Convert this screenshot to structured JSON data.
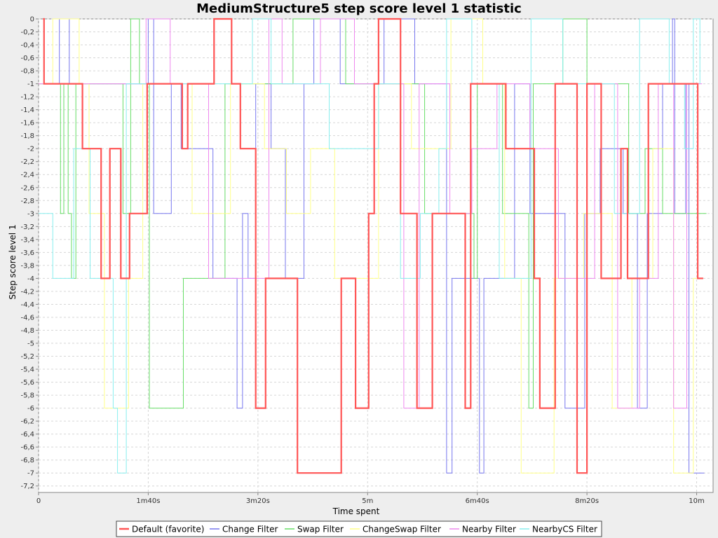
{
  "chart_data": {
    "type": "line",
    "title": "MediumStructure5 step score level 1 statistic",
    "xlabel": "Time spent",
    "ylabel": "Step score level 1",
    "xlim": [
      0,
      615
    ],
    "ylim": [
      -7.3,
      0
    ],
    "x_ticks": [
      {
        "value": 0,
        "label": "0"
      },
      {
        "value": 100,
        "label": "1m40s"
      },
      {
        "value": 200,
        "label": "3m20s"
      },
      {
        "value": 300,
        "label": "5m"
      },
      {
        "value": 400,
        "label": "6m40s"
      },
      {
        "value": 500,
        "label": "8m20s"
      },
      {
        "value": 600,
        "label": "10m"
      }
    ],
    "y_ticks": [
      0,
      -0.2,
      -0.4,
      -0.6,
      -0.8,
      -1,
      -1.2,
      -1.4,
      -1.6,
      -1.8,
      -2,
      -2.2,
      -2.4,
      -2.6,
      -2.8,
      -3,
      -3.2,
      -3.4,
      -3.6,
      -3.8,
      -4,
      -4.2,
      -4.4,
      -4.6,
      -4.8,
      -5,
      -5.2,
      -5.4,
      -5.6,
      -5.8,
      -6,
      -6.2,
      -6.4,
      -6.6,
      -6.8,
      -7,
      -7.2
    ],
    "grid": true,
    "legend": "bottom",
    "series": [
      {
        "name": "Default (favorite)",
        "color": "#ff5555",
        "width": 2.2,
        "points": [
          [
            4,
            0
          ],
          [
            5,
            -1
          ],
          [
            40,
            -2
          ],
          [
            57,
            -4
          ],
          [
            65,
            -2
          ],
          [
            75,
            -4
          ],
          [
            83,
            -3
          ],
          [
            99,
            -1
          ],
          [
            131,
            -2
          ],
          [
            136,
            -1
          ],
          [
            160,
            0
          ],
          [
            176,
            -1
          ],
          [
            184,
            -2
          ],
          [
            198,
            -6
          ],
          [
            207,
            -4
          ],
          [
            236,
            -7
          ],
          [
            276,
            -4
          ],
          [
            289,
            -6
          ],
          [
            301,
            -3
          ],
          [
            306,
            -1
          ],
          [
            310,
            0
          ],
          [
            330,
            -3
          ],
          [
            345,
            -6
          ],
          [
            359,
            -3
          ],
          [
            389,
            -6
          ],
          [
            394,
            -1
          ],
          [
            426,
            -2
          ],
          [
            452,
            -4
          ],
          [
            457,
            -6
          ],
          [
            471,
            -1
          ],
          [
            491,
            -7
          ],
          [
            500,
            -1
          ],
          [
            513,
            -4
          ],
          [
            531,
            -2
          ],
          [
            537,
            -4
          ],
          [
            556,
            -1
          ],
          [
            601,
            -4
          ],
          [
            606,
            -4
          ]
        ]
      },
      {
        "name": "Change Filter",
        "color": "#7777ee",
        "width": 1,
        "points": [
          [
            0,
            -1
          ],
          [
            9,
            -1
          ],
          [
            19,
            0
          ],
          [
            28,
            -1
          ],
          [
            100,
            0
          ],
          [
            105,
            -3
          ],
          [
            121,
            -1
          ],
          [
            130,
            -2
          ],
          [
            159,
            -4
          ],
          [
            181,
            -6
          ],
          [
            186,
            -3
          ],
          [
            191,
            -4
          ],
          [
            198,
            -1
          ],
          [
            212,
            -2
          ],
          [
            225,
            -4
          ],
          [
            242,
            -1
          ],
          [
            251,
            0
          ],
          [
            275,
            -1
          ],
          [
            315,
            0
          ],
          [
            343,
            -1
          ],
          [
            372,
            -7
          ],
          [
            377,
            -4
          ],
          [
            402,
            -7
          ],
          [
            406,
            -4
          ],
          [
            434,
            -1
          ],
          [
            448,
            -3
          ],
          [
            480,
            -6
          ],
          [
            498,
            -3
          ],
          [
            512,
            -2
          ],
          [
            533,
            -3
          ],
          [
            546,
            -6
          ],
          [
            555,
            -3
          ],
          [
            569,
            -1
          ],
          [
            578,
            0
          ],
          [
            580,
            -3
          ],
          [
            590,
            -1
          ],
          [
            593,
            -7
          ],
          [
            607,
            -7
          ]
        ]
      },
      {
        "name": "Swap Filter",
        "color": "#66dd66",
        "width": 1,
        "points": [
          [
            0,
            -1
          ],
          [
            20,
            -3
          ],
          [
            23,
            -1
          ],
          [
            27,
            -3
          ],
          [
            30,
            -4
          ],
          [
            34,
            -1
          ],
          [
            66,
            -1
          ],
          [
            77,
            -3
          ],
          [
            84,
            0
          ],
          [
            92,
            -1
          ],
          [
            101,
            -6
          ],
          [
            132,
            -4
          ],
          [
            170,
            -1
          ],
          [
            185,
            -1
          ],
          [
            232,
            0
          ],
          [
            280,
            -1
          ],
          [
            330,
            -1
          ],
          [
            352,
            -3
          ],
          [
            397,
            -4
          ],
          [
            400,
            -1
          ],
          [
            417,
            -1
          ],
          [
            423,
            -3
          ],
          [
            447,
            -6
          ],
          [
            451,
            -1
          ],
          [
            478,
            0
          ],
          [
            500,
            -1
          ],
          [
            524,
            -1
          ],
          [
            538,
            -3
          ],
          [
            553,
            -2
          ],
          [
            569,
            -3
          ],
          [
            609,
            -3
          ]
        ]
      },
      {
        "name": "ChangeSwap Filter",
        "color": "#ffff88",
        "width": 1,
        "points": [
          [
            0,
            -1
          ],
          [
            13,
            0
          ],
          [
            37,
            -1
          ],
          [
            46,
            -3
          ],
          [
            60,
            -6
          ],
          [
            75,
            -6
          ],
          [
            82,
            -4
          ],
          [
            95,
            -1
          ],
          [
            140,
            -3
          ],
          [
            175,
            -1
          ],
          [
            206,
            -2
          ],
          [
            226,
            -3
          ],
          [
            248,
            -2
          ],
          [
            270,
            -4
          ],
          [
            310,
            -1
          ],
          [
            340,
            -2
          ],
          [
            376,
            0
          ],
          [
            405,
            -1
          ],
          [
            425,
            -4
          ],
          [
            440,
            -7
          ],
          [
            470,
            -4
          ],
          [
            497,
            -3
          ],
          [
            523,
            -6
          ],
          [
            541,
            -4
          ],
          [
            560,
            -2
          ],
          [
            579,
            -7
          ],
          [
            597,
            -4
          ],
          [
            604,
            -4
          ]
        ]
      },
      {
        "name": "Nearby Filter",
        "color": "#ee88ee",
        "width": 1,
        "points": [
          [
            0,
            -1
          ],
          [
            98,
            0
          ],
          [
            120,
            -1
          ],
          [
            155,
            -4
          ],
          [
            210,
            0
          ],
          [
            222,
            -1
          ],
          [
            257,
            0
          ],
          [
            288,
            -1
          ],
          [
            333,
            -6
          ],
          [
            347,
            -1
          ],
          [
            375,
            -3
          ],
          [
            395,
            -2
          ],
          [
            418,
            -1
          ],
          [
            448,
            -2
          ],
          [
            474,
            -4
          ],
          [
            507,
            -1
          ],
          [
            528,
            -6
          ],
          [
            548,
            -4
          ],
          [
            565,
            -1
          ],
          [
            579,
            -6
          ],
          [
            591,
            -1
          ],
          [
            605,
            -1
          ]
        ]
      },
      {
        "name": "NearbyCS Filter",
        "color": "#88eeee",
        "width": 1,
        "points": [
          [
            0,
            -3
          ],
          [
            13,
            -4
          ],
          [
            32,
            -2
          ],
          [
            47,
            -4
          ],
          [
            68,
            -6
          ],
          [
            72,
            -7
          ],
          [
            80,
            -1
          ],
          [
            113,
            -1
          ],
          [
            170,
            -1
          ],
          [
            195,
            0
          ],
          [
            212,
            -1
          ],
          [
            253,
            -1
          ],
          [
            265,
            -2
          ],
          [
            290,
            -2
          ],
          [
            310,
            -1
          ],
          [
            330,
            -4
          ],
          [
            348,
            -3
          ],
          [
            365,
            -2
          ],
          [
            372,
            0
          ],
          [
            395,
            -1
          ],
          [
            420,
            -4
          ],
          [
            449,
            0
          ],
          [
            478,
            -1
          ],
          [
            505,
            -1
          ],
          [
            525,
            -3
          ],
          [
            548,
            0
          ],
          [
            575,
            -1
          ],
          [
            589,
            -2
          ],
          [
            597,
            0
          ],
          [
            603,
            -1
          ]
        ]
      }
    ]
  }
}
